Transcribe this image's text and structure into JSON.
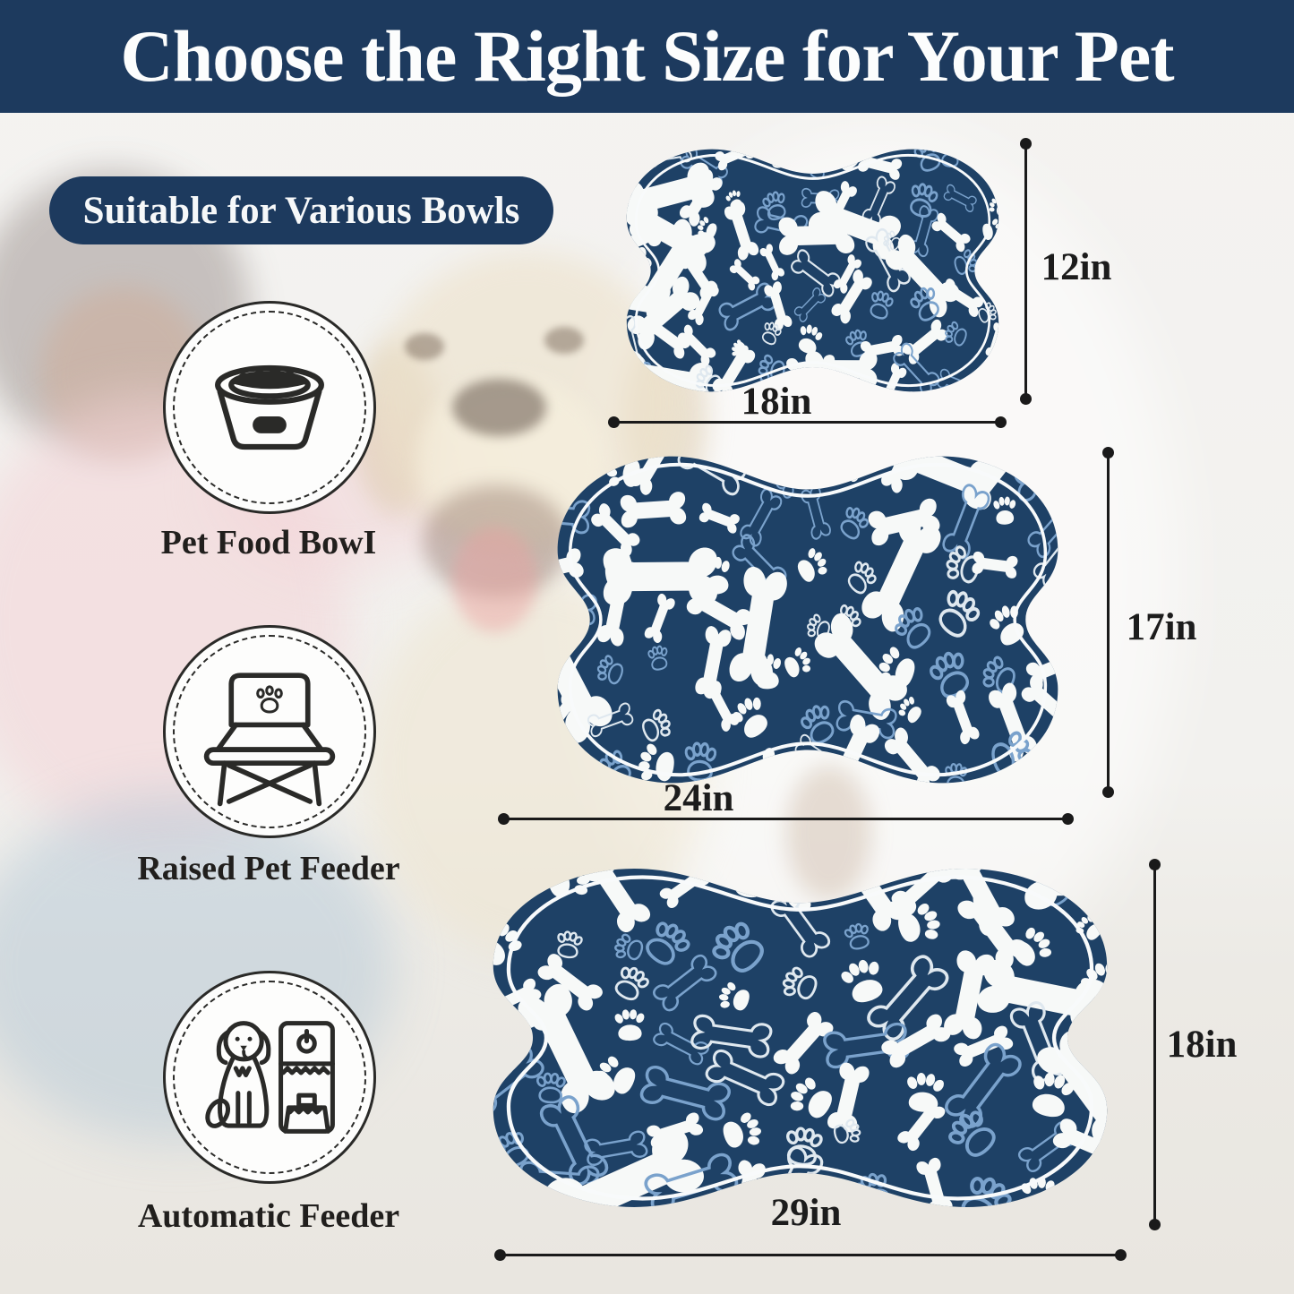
{
  "banner": {
    "title": "Choose the Right Size for Your Pet"
  },
  "badge": {
    "label": "Suitable for Various Bowls"
  },
  "compatibility": {
    "items": [
      {
        "label": "Pet Food BowI",
        "icon": "pet-food-bowl-icon"
      },
      {
        "label": "Raised Pet Feeder",
        "icon": "raised-pet-feeder-icon"
      },
      {
        "label": "Automatic Feeder",
        "icon": "automatic-feeder-icon"
      }
    ]
  },
  "mats": [
    {
      "name": "small",
      "width_label": "18in",
      "height_label": "12in"
    },
    {
      "name": "medium",
      "width_label": "24in",
      "height_label": "17in"
    },
    {
      "name": "large",
      "width_label": "29in",
      "height_label": "18in"
    }
  ],
  "colors": {
    "banner_navy": "#1d3a5e",
    "mat_navy": "#1e4166",
    "pattern_blue": "#7aa2cc",
    "pattern_white": "#f7f9f8",
    "pattern_white_outline": "#dfe8ef",
    "mat_inner_outline": "#f8fafb",
    "line_black": "#1a1a1a",
    "text_dark": "#211f1d"
  }
}
